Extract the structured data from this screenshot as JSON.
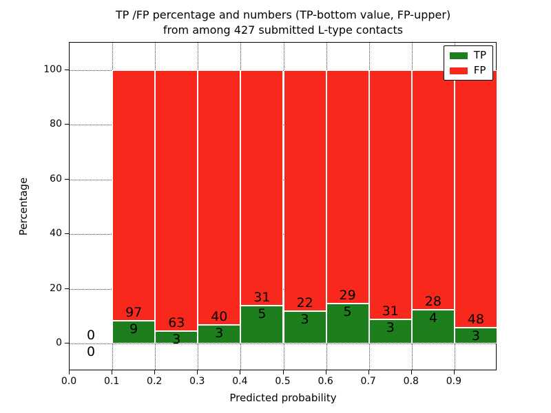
{
  "figure": {
    "title_line1": "TP /FP percentage and numbers (TP-bottom value, FP-upper)",
    "title_line2": "from among 427 submitted L-type contacts"
  },
  "axes": {
    "xlabel": "Predicted probability",
    "ylabel": "Percentage",
    "x_tick_labels": [
      "0.0",
      "0.1",
      "0.2",
      "0.3",
      "0.4",
      "0.5",
      "0.6",
      "0.7",
      "0.8",
      "0.9"
    ],
    "x_tick_values": [
      0.0,
      0.1,
      0.2,
      0.3,
      0.4,
      0.5,
      0.6,
      0.7,
      0.8,
      0.9
    ],
    "y_tick_labels": [
      "0",
      "20",
      "40",
      "60",
      "80",
      "100"
    ],
    "y_tick_values": [
      0,
      20,
      40,
      60,
      80,
      100
    ]
  },
  "legend": {
    "items": [
      {
        "label": "TP",
        "color": "#1d7e1d"
      },
      {
        "label": "FP",
        "color": "#f8281c"
      }
    ]
  },
  "chart_data": {
    "type": "bar",
    "stacked": true,
    "normalized_per_bin_to_100": true,
    "title": "TP /FP percentage and numbers (TP-bottom value, FP-upper) from among 427 submitted L-type contacts",
    "xlabel": "Predicted probability",
    "ylabel": "Percentage",
    "xlim": [
      0.0,
      1.0
    ],
    "ylim": [
      -10,
      110
    ],
    "grid": true,
    "legend_position": "upper right",
    "total_contacts": 427,
    "bin_width": 0.1,
    "series": [
      {
        "name": "TP",
        "color": "#1d7e1d"
      },
      {
        "name": "FP",
        "color": "#f8281c"
      }
    ],
    "bins": [
      {
        "x_start": 0.0,
        "x_end": 0.1,
        "tp_count": 0,
        "fp_count": 0,
        "tp_pct": 0.0,
        "fp_pct": 0.0
      },
      {
        "x_start": 0.1,
        "x_end": 0.2,
        "tp_count": 9,
        "fp_count": 97,
        "tp_pct": 8.49,
        "fp_pct": 91.51
      },
      {
        "x_start": 0.2,
        "x_end": 0.3,
        "tp_count": 3,
        "fp_count": 63,
        "tp_pct": 4.55,
        "fp_pct": 95.45
      },
      {
        "x_start": 0.3,
        "x_end": 0.4,
        "tp_count": 3,
        "fp_count": 40,
        "tp_pct": 6.98,
        "fp_pct": 93.02
      },
      {
        "x_start": 0.4,
        "x_end": 0.5,
        "tp_count": 5,
        "fp_count": 31,
        "tp_pct": 13.89,
        "fp_pct": 86.11
      },
      {
        "x_start": 0.5,
        "x_end": 0.6,
        "tp_count": 3,
        "fp_count": 22,
        "tp_pct": 12.0,
        "fp_pct": 88.0
      },
      {
        "x_start": 0.6,
        "x_end": 0.7,
        "tp_count": 5,
        "fp_count": 29,
        "tp_pct": 14.71,
        "fp_pct": 85.29
      },
      {
        "x_start": 0.7,
        "x_end": 0.8,
        "tp_count": 3,
        "fp_count": 31,
        "tp_pct": 8.82,
        "fp_pct": 91.18
      },
      {
        "x_start": 0.8,
        "x_end": 0.9,
        "tp_count": 4,
        "fp_count": 28,
        "tp_pct": 12.5,
        "fp_pct": 87.5
      },
      {
        "x_start": 0.9,
        "x_end": 1.0,
        "tp_count": 3,
        "fp_count": 48,
        "tp_pct": 5.88,
        "fp_pct": 94.12
      }
    ]
  }
}
